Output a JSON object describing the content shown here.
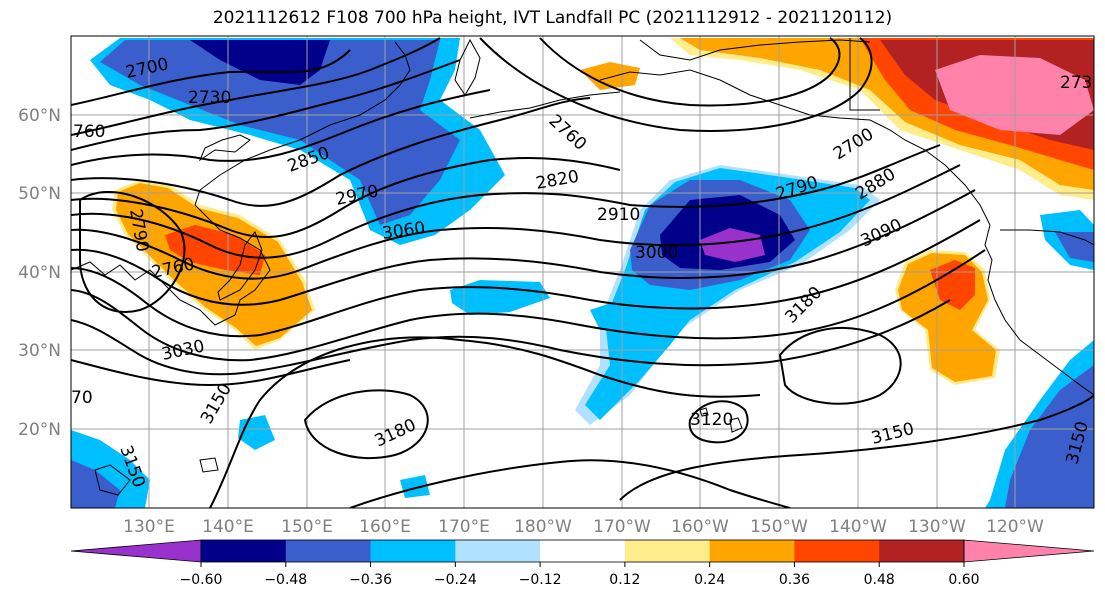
{
  "title": "2021112612 F108 700 hPa height, IVT Landfall PC (2021112912 - 2021120112)",
  "lat_ticks": [
    "60°N",
    "50°N",
    "40°N",
    "30°N",
    "20°N"
  ],
  "lon_ticks": [
    "130°E",
    "140°E",
    "150°E",
    "160°E",
    "170°E",
    "180°W",
    "170°W",
    "160°W",
    "150°W",
    "140°W",
    "130°W",
    "120°W"
  ],
  "contour_labels": [
    "2700",
    "2730",
    "760",
    "2850",
    "2970",
    "3060",
    "2760",
    "2820",
    "2910",
    "3000",
    "2790",
    "2880",
    "3090",
    "2700",
    "273",
    "3180",
    "3150",
    "3120",
    "3180",
    "3150",
    "3030",
    "2760",
    "2790",
    "3150",
    "70"
  ],
  "colorbar": {
    "ticks": [
      "−0.60",
      "−0.48",
      "−0.36",
      "−0.24",
      "−0.12",
      "0.12",
      "0.24",
      "0.36",
      "0.48",
      "0.60"
    ],
    "colors": [
      "#9932cc",
      "#00008b",
      "#3a5fcd",
      "#00bfff",
      "#b0e2ff",
      "#ffffff",
      "#ffec8b",
      "#ffa500",
      "#ff4500",
      "#b22222",
      "#ff82ab"
    ]
  },
  "shading_colors": {
    "purple": "#9932cc",
    "navy": "#00008b",
    "royal": "#3a5fcd",
    "sky": "#00bfff",
    "lightsky": "#b0e2ff",
    "yellow": "#ffec8b",
    "orange": "#ffa500",
    "orangered": "#ff4500",
    "firebrick": "#b22222",
    "pink": "#ff82ab"
  }
}
